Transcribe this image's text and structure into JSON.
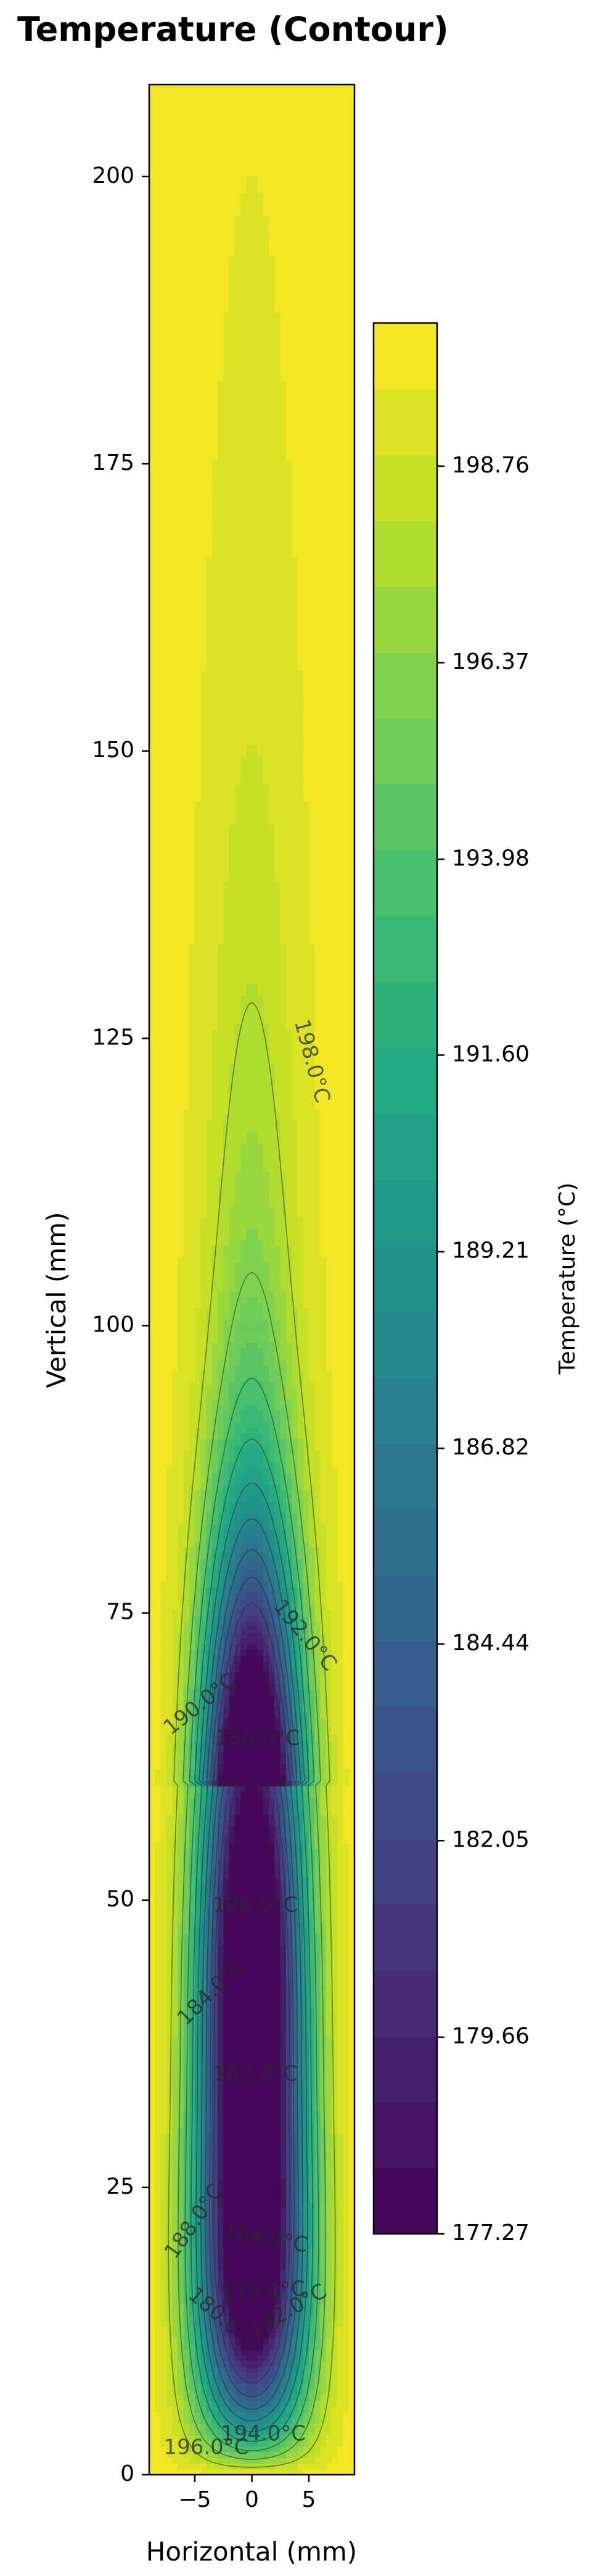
{
  "chart_data": {
    "type": "contour",
    "title": "Temperature (Contour)",
    "xlabel": "Horizontal (mm)",
    "ylabel": "Vertical (mm)",
    "xlim": [
      -9,
      9
    ],
    "ylim": [
      0,
      208
    ],
    "xticks": [
      -5,
      0,
      5
    ],
    "yticks": [
      0,
      25,
      50,
      75,
      100,
      125,
      150,
      175,
      200
    ],
    "colorbar": {
      "label": "Temperature (°C)",
      "range": [
        177.27,
        200.5
      ],
      "ticks": [
        177.27,
        179.66,
        182.05,
        184.44,
        186.82,
        189.21,
        191.6,
        193.98,
        196.37,
        198.76
      ],
      "colormap": "viridis",
      "levels": 29
    },
    "field": {
      "wall_temperature": 200.0,
      "hot_spots": [
        {
          "x": 0,
          "y": 16,
          "temperature": 177.3
        },
        {
          "x": 0,
          "y": 39,
          "temperature": 181.0
        },
        {
          "x": 0,
          "y": 59,
          "temperature": 183.0
        }
      ]
    },
    "contour_labels": [
      {
        "text": "198.0°C",
        "x": 5.2,
        "y": 123,
        "angle": 75
      },
      {
        "text": "192.0°C",
        "x": 4.6,
        "y": 73,
        "angle": 50
      },
      {
        "text": "190.0°C",
        "x": -4.5,
        "y": 67,
        "angle": -38
      },
      {
        "text": "186.0°C",
        "x": 0.5,
        "y": 64,
        "angle": 0
      },
      {
        "text": "186.0°C",
        "x": 0.3,
        "y": 49.5,
        "angle": 0
      },
      {
        "text": "184.0°C",
        "x": -3.5,
        "y": 42,
        "angle": -45
      },
      {
        "text": "182.0°C",
        "x": 0.3,
        "y": 34.8,
        "angle": 0
      },
      {
        "text": "188.0°C",
        "x": -5.0,
        "y": 22,
        "angle": -55
      },
      {
        "text": "184.0°C",
        "x": 1.2,
        "y": 20.5,
        "angle": 10
      },
      {
        "text": "180.0°C",
        "x": -2.5,
        "y": 13.5,
        "angle": 40
      },
      {
        "text": "178.0°C",
        "x": 1.0,
        "y": 15.8,
        "angle": -5
      },
      {
        "text": "182.0°C",
        "x": 3.2,
        "y": 14.2,
        "angle": -30
      },
      {
        "text": "194.0°C",
        "x": 1.0,
        "y": 3.5,
        "angle": 0
      },
      {
        "text": "196.0°C",
        "x": -4.0,
        "y": 2.3,
        "angle": 0
      }
    ]
  }
}
